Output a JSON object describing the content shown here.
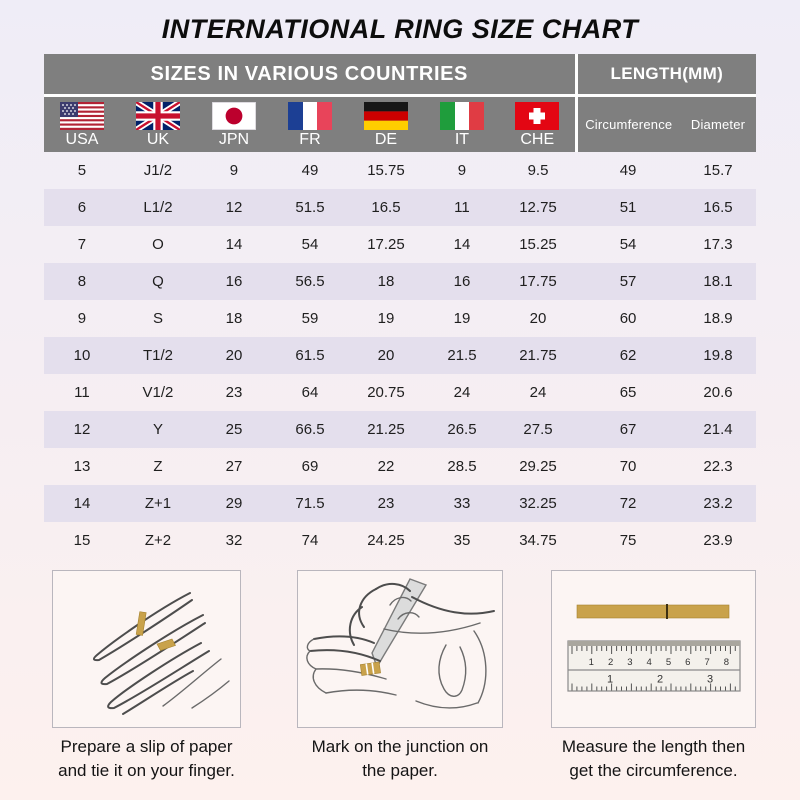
{
  "page_title": "INTERNATIONAL RING SIZE CHART",
  "table": {
    "group_headers": {
      "left": "SIZES IN VARIOUS COUNTRIES",
      "right": "LENGTH(MM)"
    }
  },
  "chart_data": {
    "type": "table",
    "title": "INTERNATIONAL RING SIZE CHART",
    "column_groups": [
      "SIZES IN VARIOUS COUNTRIES",
      "LENGTH(MM)"
    ],
    "columns": [
      "USA",
      "UK",
      "JPN",
      "FR",
      "DE",
      "IT",
      "CHE",
      "Circumference",
      "Diameter"
    ],
    "rows": [
      [
        "5",
        "J1/2",
        "9",
        "49",
        "15.75",
        "9",
        "9.5",
        "49",
        "15.7"
      ],
      [
        "6",
        "L1/2",
        "12",
        "51.5",
        "16.5",
        "11",
        "12.75",
        "51",
        "16.5"
      ],
      [
        "7",
        "O",
        "14",
        "54",
        "17.25",
        "14",
        "15.25",
        "54",
        "17.3"
      ],
      [
        "8",
        "Q",
        "16",
        "56.5",
        "18",
        "16",
        "17.75",
        "57",
        "18.1"
      ],
      [
        "9",
        "S",
        "18",
        "59",
        "19",
        "19",
        "20",
        "60",
        "18.9"
      ],
      [
        "10",
        "T1/2",
        "20",
        "61.5",
        "20",
        "21.5",
        "21.75",
        "62",
        "19.8"
      ],
      [
        "11",
        "V1/2",
        "23",
        "64",
        "20.75",
        "24",
        "24",
        "65",
        "20.6"
      ],
      [
        "12",
        "Y",
        "25",
        "66.5",
        "21.25",
        "26.5",
        "27.5",
        "67",
        "21.4"
      ],
      [
        "13",
        "Z",
        "27",
        "69",
        "22",
        "28.5",
        "29.25",
        "70",
        "22.3"
      ],
      [
        "14",
        "Z+1",
        "29",
        "71.5",
        "23",
        "33",
        "32.25",
        "72",
        "23.2"
      ],
      [
        "15",
        "Z+2",
        "32",
        "74",
        "24.25",
        "35",
        "34.75",
        "75",
        "23.9"
      ]
    ]
  },
  "steps": [
    {
      "caption": "Prepare a slip of paper and tie it on your finger."
    },
    {
      "caption": "Mark on the junction on the paper."
    },
    {
      "caption": "Measure the length then get the circumference."
    }
  ],
  "ruler_scale": {
    "top": [
      "1",
      "2",
      "3",
      "4",
      "5",
      "6",
      "7",
      "8"
    ],
    "bottom": [
      "1",
      "2",
      "3"
    ]
  },
  "colors": {
    "header_bg": "#7f7f7f",
    "header_text": "#ffffff",
    "row_alt_bg": "#e4dfed",
    "table_text": "#1f1f1f",
    "gold": "#c9a24b",
    "bg_top": "#efedf7",
    "bg_bottom": "#fdf1ee"
  }
}
